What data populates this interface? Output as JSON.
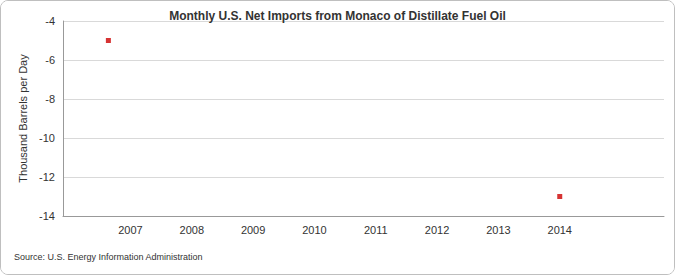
{
  "chart_data": {
    "type": "scatter",
    "title": "Monthly U.S. Net Imports from Monaco of Distillate Fuel Oil",
    "y_label": "Thousand Barrels per Day",
    "source": "Source: U.S. Energy Information Administration",
    "x": [
      2006.64,
      2014.0
    ],
    "values": [
      -5,
      -13
    ],
    "color": "#cc0000",
    "marker": "square",
    "xlim": [
      2005.9,
      2015.7
    ],
    "xticks": [
      2007,
      2008,
      2009,
      2010,
      2011,
      2012,
      2013,
      2014
    ],
    "ylim": [
      -14,
      -4
    ],
    "yticks": [
      -14,
      -12,
      -10,
      -8,
      -6,
      -4
    ],
    "grid": true
  }
}
